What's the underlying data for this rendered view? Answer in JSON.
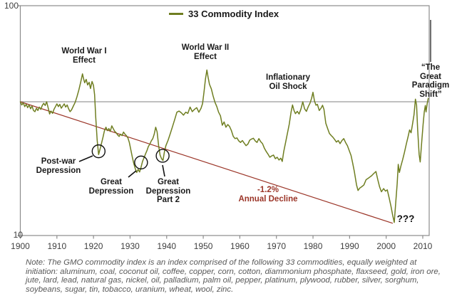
{
  "legend": {
    "label": "33 Commodity Index"
  },
  "y_axis": {
    "labels": [
      "100",
      "10"
    ]
  },
  "annotations": {
    "ww1": [
      "World War I",
      "Effect"
    ],
    "ww2": [
      "World War II",
      "Effect"
    ],
    "oil": [
      "Inflationary",
      "Oil Shock"
    ],
    "paradigm": [
      "“The",
      "Great",
      "Paradigm",
      "Shift”"
    ],
    "postwar": [
      "Post-war",
      "Depression"
    ],
    "gd": [
      "Great",
      "Depression"
    ],
    "gd2": [
      "Great",
      "Depression",
      "Part 2"
    ],
    "decline": [
      "-1.2%",
      "Annual Decline"
    ],
    "unknown": "???"
  },
  "note": "Note: The GMO commodity index is an index comprised of the following 33 commodities, equally weighted at initiation:  aluminum, coal, coconut oil, coffee, copper, corn, cotton, diammonium phosphate, flaxseed, gold, iron ore, jute, lard, lead, natural gas, nickel, oil, palladium, palm oil, pepper, platinum, plywood, rubber, silver, sorghum, soybeans, sugar, tin, tobacco, uranium, wheat, wool, zinc.",
  "chart_data": {
    "type": "line",
    "title": "33 Commodity Index",
    "legend_position": "top-center",
    "grid": false,
    "x_axis": {
      "min": 1900,
      "max": 2011.8,
      "ticks": [
        1900,
        1910,
        1920,
        1930,
        1940,
        1950,
        1960,
        1970,
        1980,
        1990,
        2000,
        2010
      ]
    },
    "y_axis": {
      "scale": "log",
      "min": 10,
      "max": 100,
      "ticks": [
        10,
        100
      ]
    },
    "reference_line": {
      "value": 38.2,
      "color": "#808080",
      "meaning": "1900 starting level"
    },
    "trend_line": {
      "from": [
        1900,
        38.2
      ],
      "to": [
        2001.8,
        11.3
      ],
      "color": "#9B3528",
      "label": "-1.2% Annual Decline"
    },
    "event_markers": [
      {
        "label": "Post-war Depression",
        "year": 1921.4,
        "value": 22.6
      },
      {
        "label": "Great Depression",
        "year": 1933.0,
        "value": 20.2
      },
      {
        "label": "Great Depression Part 2",
        "year": 1938.9,
        "value": 21.6
      },
      {
        "label": "???",
        "year": 2002.2,
        "value": 11.4
      }
    ],
    "series": [
      {
        "name": "33 Commodity Index",
        "color": "#6F7E21",
        "points": [
          [
            1900,
            38.2
          ],
          [
            1900.4,
            37
          ],
          [
            1900.8,
            37.8
          ],
          [
            1901.2,
            36.4
          ],
          [
            1901.6,
            37.2
          ],
          [
            1902,
            36
          ],
          [
            1902.4,
            37
          ],
          [
            1902.8,
            35.6
          ],
          [
            1903.2,
            36.6
          ],
          [
            1903.6,
            35
          ],
          [
            1904,
            34.6
          ],
          [
            1904.4,
            35.8
          ],
          [
            1904.8,
            35
          ],
          [
            1905.2,
            36.2
          ],
          [
            1905.6,
            35.4
          ],
          [
            1906,
            36.8
          ],
          [
            1906.4,
            37.6
          ],
          [
            1906.8,
            36.8
          ],
          [
            1907.2,
            38.2
          ],
          [
            1907.6,
            36
          ],
          [
            1908,
            33.8
          ],
          [
            1908.4,
            34.8
          ],
          [
            1908.8,
            34
          ],
          [
            1909.2,
            35.4
          ],
          [
            1909.6,
            36.4
          ],
          [
            1910,
            37.4
          ],
          [
            1910.4,
            36.4
          ],
          [
            1910.8,
            37.2
          ],
          [
            1911.2,
            35.8
          ],
          [
            1911.6,
            36.6
          ],
          [
            1912,
            37.4
          ],
          [
            1912.4,
            36.2
          ],
          [
            1912.8,
            37
          ],
          [
            1913.2,
            35.6
          ],
          [
            1913.6,
            34.6
          ],
          [
            1914,
            35.2
          ],
          [
            1914.5,
            36.6
          ],
          [
            1915,
            38
          ],
          [
            1915.5,
            40.2
          ],
          [
            1916,
            43
          ],
          [
            1916.5,
            46.5
          ],
          [
            1917,
            50.5
          ],
          [
            1917.3,
            48
          ],
          [
            1917.6,
            46.2
          ],
          [
            1918,
            47.8
          ],
          [
            1918.4,
            45.2
          ],
          [
            1918.8,
            46.4
          ],
          [
            1919.2,
            43.6
          ],
          [
            1919.6,
            46.8
          ],
          [
            1920,
            45
          ],
          [
            1920.3,
            41
          ],
          [
            1920.6,
            33
          ],
          [
            1921,
            26
          ],
          [
            1921.4,
            22.5
          ],
          [
            1921.8,
            23.8
          ],
          [
            1922.2,
            25.2
          ],
          [
            1922.6,
            26.8
          ],
          [
            1923,
            28.6
          ],
          [
            1923.4,
            29.6
          ],
          [
            1923.8,
            28.6
          ],
          [
            1924.2,
            29.2
          ],
          [
            1924.6,
            28.4
          ],
          [
            1925,
            30
          ],
          [
            1925.4,
            29.2
          ],
          [
            1925.8,
            28.4
          ],
          [
            1926.2,
            28
          ],
          [
            1926.6,
            27.4
          ],
          [
            1927,
            27
          ],
          [
            1927.4,
            27.6
          ],
          [
            1927.8,
            27.2
          ],
          [
            1928.2,
            28.2
          ],
          [
            1928.6,
            27.6
          ],
          [
            1929,
            27.2
          ],
          [
            1929.4,
            26.6
          ],
          [
            1929.8,
            25.4
          ],
          [
            1930.2,
            23.6
          ],
          [
            1930.6,
            22
          ],
          [
            1931,
            20.6
          ],
          [
            1931.4,
            19.6
          ],
          [
            1931.8,
            18.8
          ],
          [
            1932.2,
            19.4
          ],
          [
            1932.6,
            18.9
          ],
          [
            1933,
            19.8
          ],
          [
            1933.4,
            21
          ],
          [
            1933.8,
            21.8
          ],
          [
            1934.2,
            22.6
          ],
          [
            1934.6,
            23.4
          ],
          [
            1935,
            24.4
          ],
          [
            1935.4,
            25
          ],
          [
            1935.8,
            25.8
          ],
          [
            1936.2,
            26.4
          ],
          [
            1936.6,
            27.6
          ],
          [
            1937,
            29.6
          ],
          [
            1937.4,
            28.2
          ],
          [
            1937.8,
            24.6
          ],
          [
            1938.2,
            22.4
          ],
          [
            1938.6,
            21.6
          ],
          [
            1939,
            21.2
          ],
          [
            1939.4,
            23.2
          ],
          [
            1939.8,
            24.6
          ],
          [
            1940.4,
            26
          ],
          [
            1941,
            27.8
          ],
          [
            1941.6,
            29.8
          ],
          [
            1942.2,
            32
          ],
          [
            1942.8,
            34.4
          ],
          [
            1943.4,
            34.8
          ],
          [
            1944,
            34.2
          ],
          [
            1944.6,
            33.4
          ],
          [
            1945.2,
            34.4
          ],
          [
            1945.8,
            34
          ],
          [
            1946.4,
            36.2
          ],
          [
            1947,
            34.6
          ],
          [
            1947.6,
            35.4
          ],
          [
            1948.2,
            36
          ],
          [
            1948.8,
            34.4
          ],
          [
            1949.4,
            35.8
          ],
          [
            1949.8,
            37.5
          ],
          [
            1950.2,
            42
          ],
          [
            1950.6,
            48
          ],
          [
            1951,
            52.5
          ],
          [
            1951.3,
            49
          ],
          [
            1951.7,
            45.5
          ],
          [
            1952.2,
            43.5
          ],
          [
            1952.7,
            40.5
          ],
          [
            1953.2,
            38
          ],
          [
            1953.7,
            36.4
          ],
          [
            1954.2,
            34.4
          ],
          [
            1954.7,
            33.2
          ],
          [
            1955.2,
            30.2
          ],
          [
            1955.7,
            31.2
          ],
          [
            1956.2,
            29.6
          ],
          [
            1956.7,
            30.4
          ],
          [
            1957.2,
            29.8
          ],
          [
            1957.7,
            28.6
          ],
          [
            1958.2,
            27
          ],
          [
            1958.7,
            26.4
          ],
          [
            1959.2,
            26.6
          ],
          [
            1959.7,
            25.8
          ],
          [
            1960.2,
            25.4
          ],
          [
            1960.7,
            25.9
          ],
          [
            1961.2,
            25.2
          ],
          [
            1961.7,
            24.6
          ],
          [
            1962.2,
            25
          ],
          [
            1962.7,
            26
          ],
          [
            1963.2,
            26.3
          ],
          [
            1963.7,
            26.5
          ],
          [
            1964.2,
            25.8
          ],
          [
            1964.7,
            25.4
          ],
          [
            1965.2,
            26.4
          ],
          [
            1965.7,
            25.6
          ],
          [
            1966.2,
            25.1
          ],
          [
            1966.7,
            24
          ],
          [
            1967.2,
            23.2
          ],
          [
            1967.7,
            22.6
          ],
          [
            1968.2,
            21.9
          ],
          [
            1968.7,
            22.2
          ],
          [
            1969.2,
            22.4
          ],
          [
            1969.7,
            21.6
          ],
          [
            1970.2,
            21.9
          ],
          [
            1970.7,
            21.3
          ],
          [
            1971.2,
            21.7
          ],
          [
            1971.6,
            21
          ],
          [
            1972,
            23.2
          ],
          [
            1972.5,
            25.4
          ],
          [
            1973,
            27.8
          ],
          [
            1973.5,
            30.5
          ],
          [
            1974,
            34.5
          ],
          [
            1974.4,
            37
          ],
          [
            1974.8,
            35
          ],
          [
            1975.2,
            33.9
          ],
          [
            1975.7,
            34.7
          ],
          [
            1976.2,
            33.8
          ],
          [
            1976.7,
            35.5
          ],
          [
            1977.2,
            38.2
          ],
          [
            1977.7,
            35.6
          ],
          [
            1978.2,
            34.7
          ],
          [
            1978.7,
            36.4
          ],
          [
            1979.2,
            37.7
          ],
          [
            1979.6,
            39.5
          ],
          [
            1980,
            42
          ],
          [
            1980.4,
            38.5
          ],
          [
            1980.8,
            36.9
          ],
          [
            1981.2,
            37.2
          ],
          [
            1981.7,
            35
          ],
          [
            1982.2,
            35.8
          ],
          [
            1982.6,
            36.9
          ],
          [
            1983,
            35.4
          ],
          [
            1983.5,
            30.8
          ],
          [
            1984,
            29.2
          ],
          [
            1984.5,
            27.8
          ],
          [
            1985,
            27.2
          ],
          [
            1985.4,
            26.8
          ],
          [
            1985.9,
            26.2
          ],
          [
            1986.4,
            25.5
          ],
          [
            1986.9,
            25.9
          ],
          [
            1987.4,
            25.1
          ],
          [
            1987.9,
            25.9
          ],
          [
            1988.4,
            26.4
          ],
          [
            1988.9,
            25.4
          ],
          [
            1989.4,
            24.6
          ],
          [
            1989.9,
            23.4
          ],
          [
            1990.4,
            22.3
          ],
          [
            1990.8,
            20.8
          ],
          [
            1991.3,
            19
          ],
          [
            1991.9,
            16.6
          ],
          [
            1992.3,
            15.7
          ],
          [
            1992.8,
            16.1
          ],
          [
            1993.3,
            16.3
          ],
          [
            1993.9,
            16.6
          ],
          [
            1994.5,
            17.5
          ],
          [
            1995,
            17.7
          ],
          [
            1995.4,
            17.9
          ],
          [
            1996,
            18.2
          ],
          [
            1996.6,
            18.6
          ],
          [
            1997.2,
            19
          ],
          [
            1997.7,
            17.5
          ],
          [
            1998.2,
            16.3
          ],
          [
            1998.7,
            15.5
          ],
          [
            1999.3,
            16
          ],
          [
            1999.8,
            15.6
          ],
          [
            2000.3,
            15.8
          ],
          [
            2000.8,
            14.6
          ],
          [
            2001.3,
            13.4
          ],
          [
            2001.8,
            12.2
          ],
          [
            2002.2,
            11.4
          ],
          [
            2002.6,
            13.8
          ],
          [
            2003,
            16.8
          ],
          [
            2003.3,
            20.4
          ],
          [
            2003.6,
            18.8
          ],
          [
            2004,
            20
          ],
          [
            2004.5,
            21.4
          ],
          [
            2005,
            23
          ],
          [
            2005.5,
            25
          ],
          [
            2006,
            27
          ],
          [
            2006.4,
            28.8
          ],
          [
            2006.8,
            28
          ],
          [
            2007.2,
            30.5
          ],
          [
            2007.6,
            33.5
          ],
          [
            2008,
            39.2
          ],
          [
            2008.3,
            37
          ],
          [
            2008.6,
            29
          ],
          [
            2009,
            22.5
          ],
          [
            2009.3,
            20.9
          ],
          [
            2009.7,
            25.5
          ],
          [
            2010.1,
            30.5
          ],
          [
            2010.4,
            34.5
          ],
          [
            2010.7,
            36.8
          ],
          [
            2010.9,
            34.5
          ],
          [
            2011.2,
            37.5
          ],
          [
            2011.5,
            39.5
          ]
        ]
      }
    ]
  }
}
